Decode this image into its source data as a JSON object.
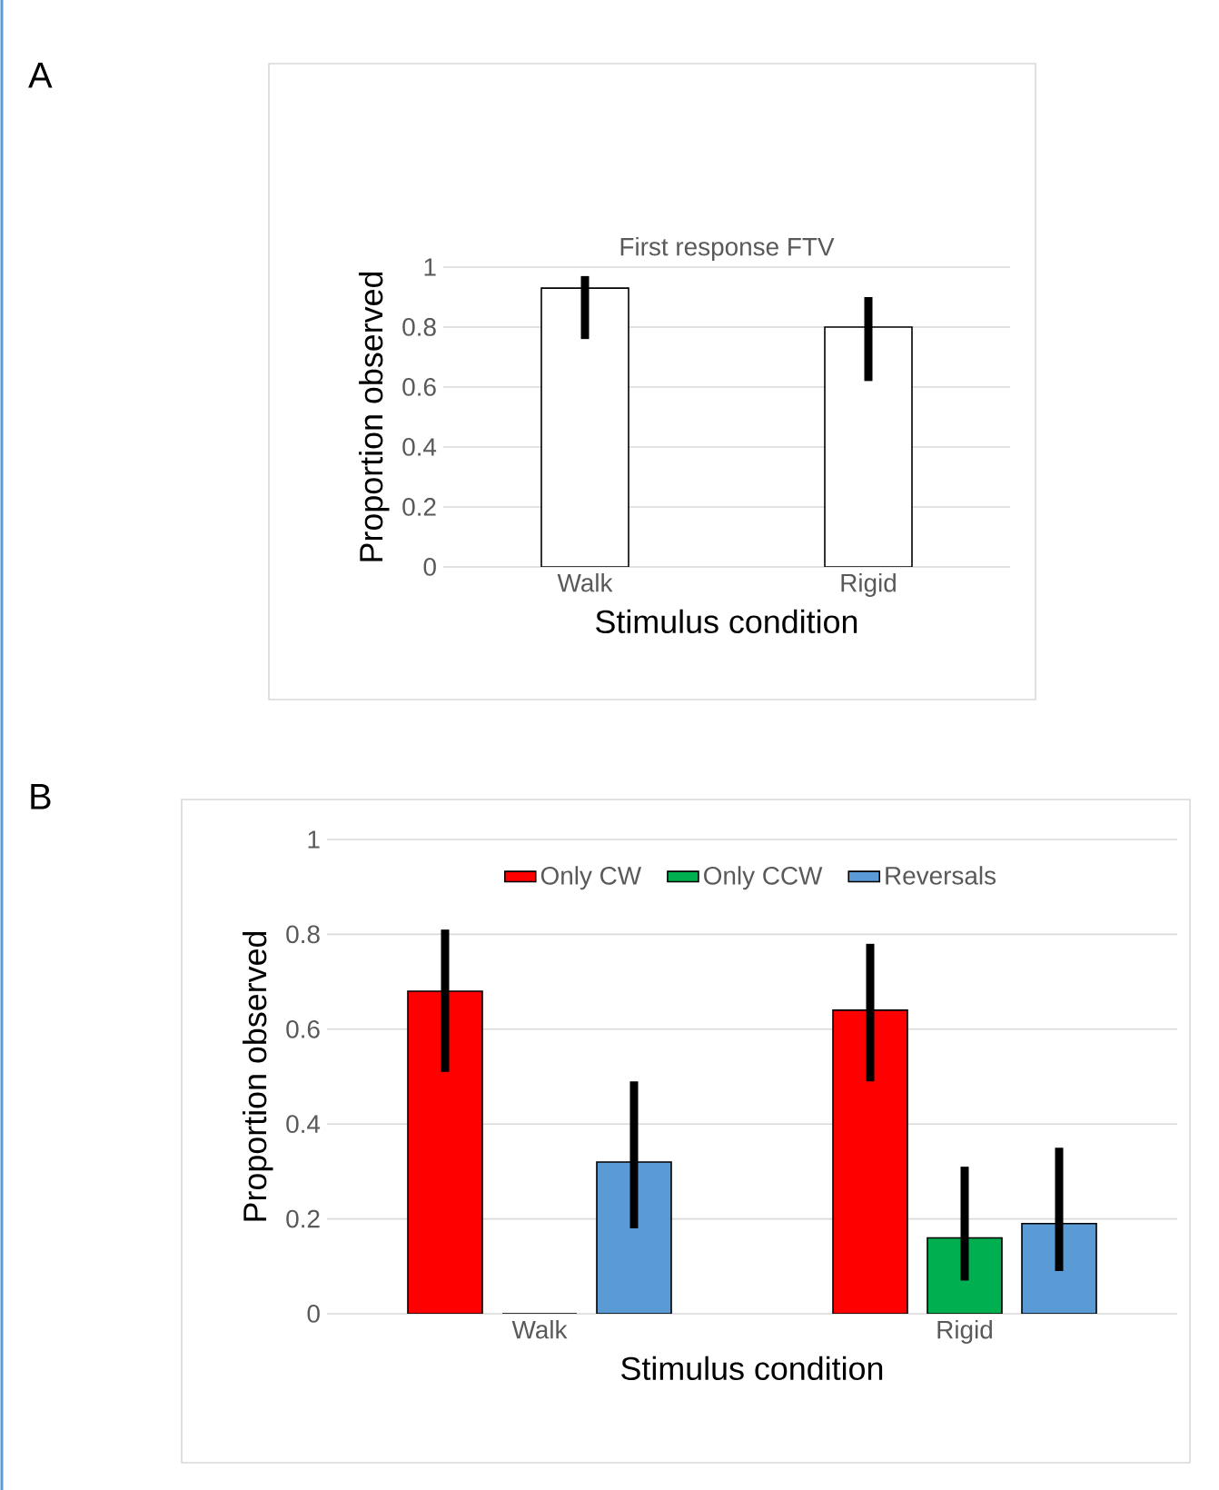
{
  "chart_data": [
    {
      "type": "bar",
      "title": "First response FTV",
      "xlabel": "Stimulus condition",
      "ylabel": "Proportion observed",
      "categories": [
        "Walk",
        "Rigid"
      ],
      "series": [
        {
          "color": "#ffffff",
          "values": [
            0.93,
            0.8
          ],
          "errors": [
            [
              0.76,
              0.97
            ],
            [
              0.62,
              0.9
            ]
          ]
        }
      ],
      "ylim": [
        0,
        1
      ],
      "yticks": [
        0,
        0.2,
        0.4,
        0.6,
        0.8,
        1
      ],
      "grid": "y",
      "legend": false,
      "annotations": [
        "A"
      ]
    },
    {
      "type": "bar",
      "xlabel": "Stimulus condition",
      "ylabel": "Proportion observed",
      "categories": [
        "Walk",
        "Rigid"
      ],
      "series": [
        {
          "name": "Only CW",
          "color": "#ff0000",
          "values": [
            0.68,
            0.64
          ],
          "errors": [
            [
              0.51,
              0.81
            ],
            [
              0.49,
              0.78
            ]
          ]
        },
        {
          "name": "Only CCW",
          "color": "#00b050",
          "values": [
            0,
            0.16
          ],
          "errors": [
            null,
            [
              0.07,
              0.31
            ]
          ]
        },
        {
          "name": "Reversals",
          "color": "#5b9bd5",
          "values": [
            0.32,
            0.19
          ],
          "errors": [
            [
              0.18,
              0.49
            ],
            [
              0.09,
              0.35
            ]
          ]
        }
      ],
      "ylim": [
        0,
        1
      ],
      "yticks": [
        0,
        0.2,
        0.4,
        0.6,
        0.8,
        1
      ],
      "grid": "y",
      "legend": "top",
      "annotations": [
        "B"
      ]
    }
  ]
}
